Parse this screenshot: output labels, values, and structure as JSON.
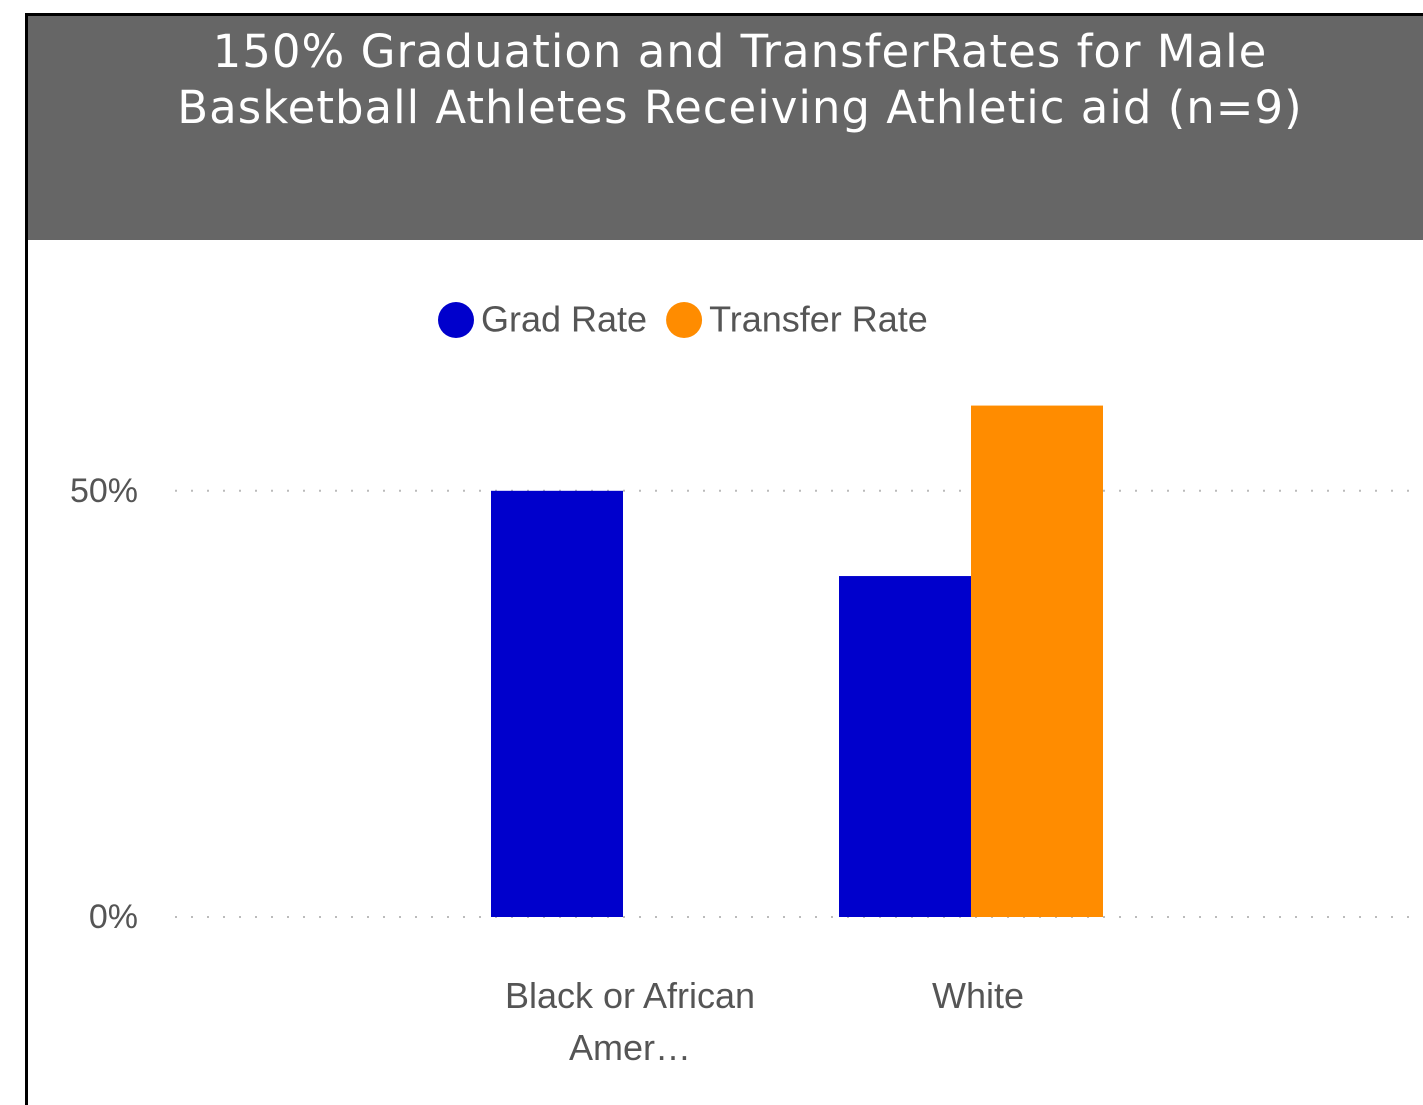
{
  "chart_data": {
    "type": "bar",
    "title": "150% Graduation and TransferRates for Male Basketball Athletes Receiving Athletic aid (n=9)",
    "categories": [
      "Black or African Amer…",
      "White"
    ],
    "series": [
      {
        "name": "Grad Rate",
        "color": "#0000cc",
        "values": [
          50,
          40
        ]
      },
      {
        "name": "Transfer Rate",
        "color": "#ff8c00",
        "values": [
          null,
          60
        ]
      }
    ],
    "ylim": [
      0,
      63
    ],
    "yticks": [
      {
        "value": 0,
        "label": "0%"
      },
      {
        "value": 50,
        "label": "50%"
      }
    ],
    "grid": true,
    "legend": "top"
  }
}
